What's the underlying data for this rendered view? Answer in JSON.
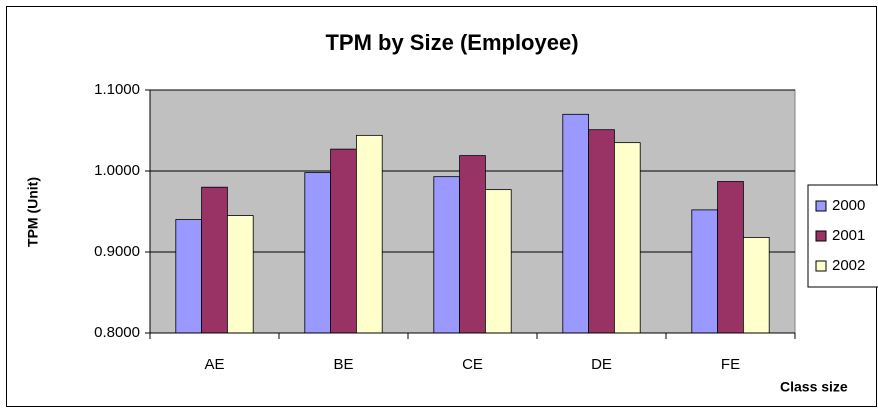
{
  "chart_data": {
    "type": "bar",
    "title": "TPM by Size (Employee)",
    "y_label": "TPM (Unit)",
    "x_label": "Class size",
    "categories": [
      "AE",
      "BE",
      "CE",
      "DE",
      "FE"
    ],
    "series": [
      {
        "name": "2000",
        "color": "#9999ff",
        "values": [
          0.94,
          0.998,
          0.993,
          1.07,
          0.952
        ]
      },
      {
        "name": "2001",
        "color": "#993366",
        "values": [
          0.98,
          1.027,
          1.019,
          1.051,
          0.987
        ]
      },
      {
        "name": "2002",
        "color": "#ffffcc",
        "values": [
          0.945,
          1.044,
          0.977,
          1.035,
          0.918
        ]
      }
    ],
    "ylim": [
      0.8,
      1.1
    ],
    "yticks": [
      {
        "value": 0.8,
        "label": "0.8000"
      },
      {
        "value": 0.9,
        "label": "0.9000"
      },
      {
        "value": 1.0,
        "label": "1.0000"
      },
      {
        "value": 1.1,
        "label": "1.1000"
      }
    ],
    "grid": true,
    "legend": "right",
    "plot_background": "#c0c0c0"
  }
}
